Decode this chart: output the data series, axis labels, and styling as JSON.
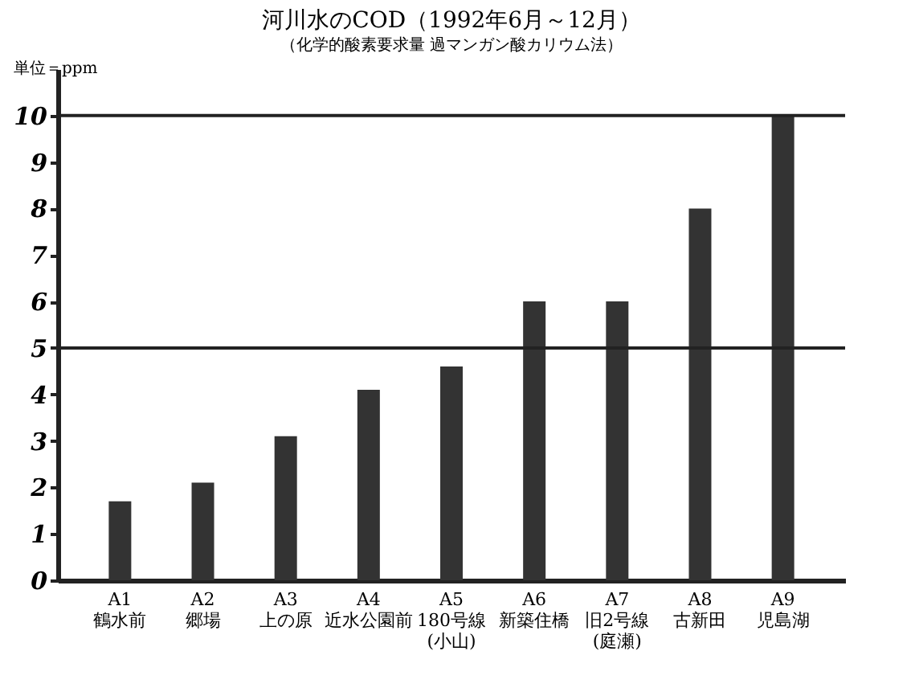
{
  "chart_data": {
    "type": "bar",
    "title": "河川水のCOD（1992年6月～12月）",
    "subtitle": "（化学的酸素要求量 過マンガン酸カリウム法）",
    "ylabel": "単位＝ppm",
    "categories": [
      "A1 鶴水前",
      "A2 郷場",
      "A3 上の原",
      "A4 近水公園前",
      "A5 180号線 (小山)",
      "A6 新築住橋",
      "A7 旧2号線 (庭瀬)",
      "A8 古新田",
      "A9 児島湖"
    ],
    "values": [
      1.7,
      2.1,
      3.1,
      4.1,
      4.6,
      6.0,
      6.0,
      8.0,
      10.0
    ],
    "color": "#333333",
    "ylim": [
      0,
      11
    ],
    "yticks": [
      0,
      1,
      2,
      3,
      4,
      5,
      6,
      7,
      8,
      9,
      10
    ],
    "ref_lines": [
      {
        "axis": "y",
        "value": 10
      },
      {
        "axis": "y",
        "value": 5
      }
    ]
  }
}
